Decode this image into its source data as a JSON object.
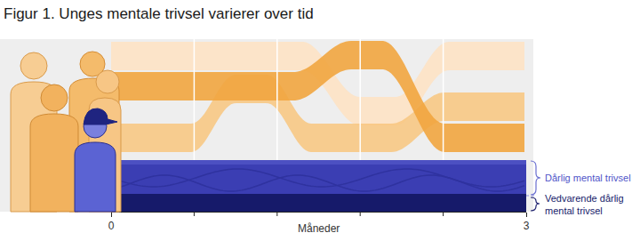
{
  "chart_data": {
    "type": "area",
    "title": "Figur 1. Unges mentale trivsel varierer over tid",
    "xlabel": "Måneder",
    "xlim": [
      0,
      3
    ],
    "xticks": [
      0,
      3
    ],
    "tick_labels": "x",
    "grid": true,
    "annotations": [
      "Dårlig mental trivsel",
      "Vedvarende dårlig mental trivsel"
    ]
  }
}
